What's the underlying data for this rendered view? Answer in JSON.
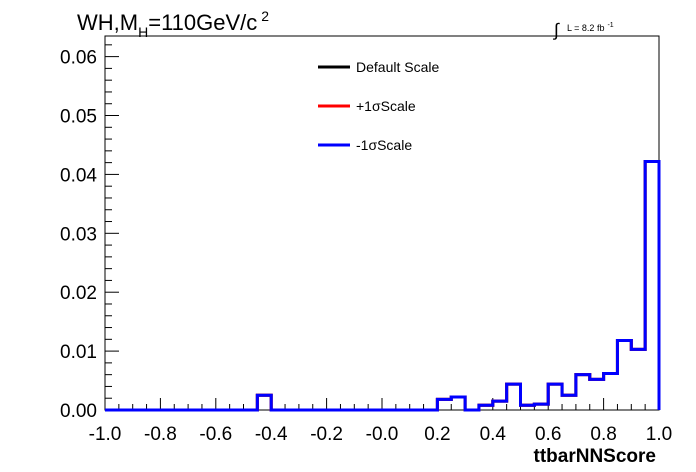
{
  "chart_data": {
    "type": "line",
    "title": "WH,M",
    "title_subscript": "H",
    "title_rest": "=110GeV/c",
    "title_superscript": "2",
    "lumi_symbol": "∫",
    "lumi_text": "L = 8.2 fb",
    "lumi_superscript": "-1",
    "xlabel": "ttbarNNScore",
    "ylabel": "",
    "xlim": [
      -1.0,
      1.0
    ],
    "ylim": [
      0.0,
      0.0635
    ],
    "x_tick_labels": [
      "-1.0",
      "-0.8",
      "-0.6",
      "-0.4",
      "-0.2",
      "-0.0",
      "0.2",
      "0.4",
      "0.6",
      "0.8",
      "1.0"
    ],
    "y_tick_labels": [
      "0.00",
      "0.01",
      "0.02",
      "0.03",
      "0.04",
      "0.05",
      "0.06"
    ],
    "grid": false,
    "legend_position": "top-center",
    "bin_edges": [
      -1.0,
      -0.95,
      -0.9,
      -0.85,
      -0.8,
      -0.75,
      -0.7,
      -0.65,
      -0.6,
      -0.55,
      -0.5,
      -0.45,
      -0.4,
      -0.35,
      -0.3,
      -0.25,
      -0.2,
      -0.15,
      -0.1,
      -0.05,
      0.0,
      0.05,
      0.1,
      0.15,
      0.2,
      0.25,
      0.3,
      0.35,
      0.4,
      0.45,
      0.5,
      0.55,
      0.6,
      0.65,
      0.7,
      0.75,
      0.8,
      0.85,
      0.9,
      0.95,
      1.0
    ],
    "series": [
      {
        "name": "Default Scale",
        "color": "#000000",
        "values": [
          0,
          0,
          0,
          0,
          0,
          0,
          0,
          0,
          0,
          0,
          0,
          0.0025,
          0,
          0,
          0,
          0,
          0,
          0,
          0,
          0,
          0,
          0,
          0,
          0,
          0.0018,
          0.0022,
          0,
          0.0008,
          0.0015,
          0.0044,
          0.0008,
          0.001,
          0.0044,
          0.0025,
          0.006,
          0.0052,
          0.0062,
          0.0118,
          0.0103,
          0.0422
        ]
      },
      {
        "name": "+1σScale",
        "color": "#ff0000",
        "values": [
          0,
          0,
          0,
          0,
          0,
          0,
          0,
          0,
          0,
          0,
          0,
          0.0025,
          0,
          0,
          0,
          0,
          0,
          0,
          0,
          0,
          0,
          0,
          0,
          0,
          0.0018,
          0.0022,
          0,
          0.0008,
          0.0015,
          0.0044,
          0.0008,
          0.001,
          0.0044,
          0.0025,
          0.006,
          0.0052,
          0.0062,
          0.0118,
          0.0103,
          0.0422
        ]
      },
      {
        "name": "-1σScale",
        "color": "#0000ff",
        "values": [
          0,
          0,
          0,
          0,
          0,
          0,
          0,
          0,
          0,
          0,
          0,
          0.0025,
          0,
          0,
          0,
          0,
          0,
          0,
          0,
          0,
          0,
          0,
          0,
          0,
          0.0018,
          0.0022,
          0,
          0.0008,
          0.0015,
          0.0044,
          0.0008,
          0.001,
          0.0044,
          0.0025,
          0.006,
          0.0052,
          0.0062,
          0.0118,
          0.0103,
          0.0422
        ]
      }
    ]
  }
}
